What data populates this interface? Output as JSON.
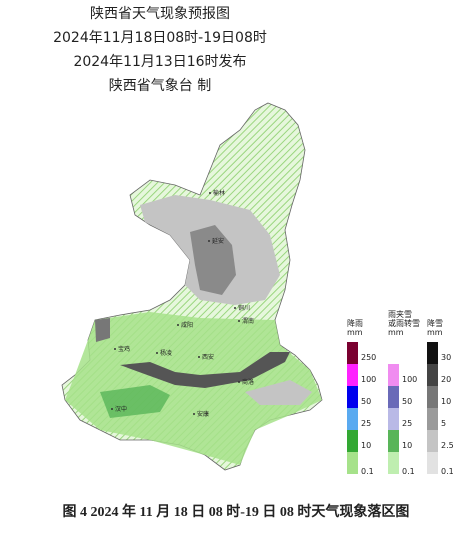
{
  "header": {
    "title": "陕西省天气现象预报图",
    "period": "2024年11月18日08时-19日08时",
    "issued": "2024年11月13日16时发布",
    "issuer": "陕西省气象台 制"
  },
  "cities": [
    "榆林",
    "延安",
    "铜川",
    "渭南",
    "咸阳",
    "宝鸡",
    "杨凌",
    "西安",
    "商洛",
    "汉中",
    "安康"
  ],
  "legend": [
    {
      "title_lines": [
        "降雨"
      ],
      "unit": "mm",
      "colors": [
        "#7a0030",
        "#ff22ff",
        "#0000ee",
        "#5aaaf0",
        "#33a833",
        "#a6e28a"
      ],
      "labels": [
        250,
        100,
        50,
        25,
        10,
        0.1
      ]
    },
    {
      "title_lines": [
        "雨夹雪",
        "或雨转雪"
      ],
      "unit": "mm",
      "colors": [
        "#f08cf0",
        "#6a6ab8",
        "#b9b9e6",
        "#59b559",
        "#bfeeb0"
      ],
      "labels": [
        100,
        50,
        25,
        10,
        0.1
      ]
    },
    {
      "title_lines": [
        "降雪"
      ],
      "unit": "mm",
      "colors": [
        "#111111",
        "#444444",
        "#777777",
        "#9a9a9a",
        "#c4c4c4",
        "#e2e2e2"
      ],
      "labels": [
        30,
        20,
        10,
        5,
        2.5,
        0.1
      ]
    }
  ],
  "caption": "图 4 2024 年 11 月 18 日 08 时-19 日 08 时天气现象落区图"
}
